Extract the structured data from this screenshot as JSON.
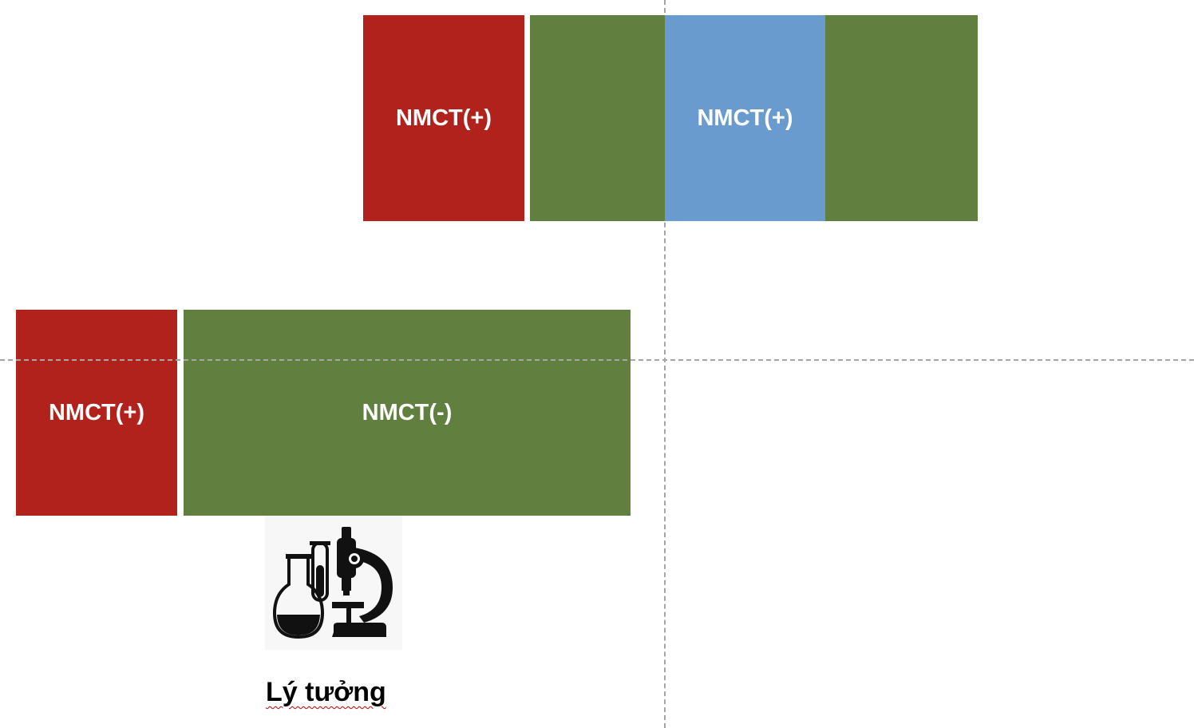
{
  "colors": {
    "red": "#b0221b",
    "green": "#617f3e",
    "blue": "#6a9bcf",
    "guide": "#a6a6a6",
    "caption_underline": "#c00000"
  },
  "top_row": {
    "red_label": "NMCT(+)",
    "green_left_label": "",
    "blue_label": "NMCT(+)",
    "green_right_label": ""
  },
  "bottom_row": {
    "red_label": "NMCT(+)",
    "green_label": "NMCT(-)"
  },
  "icon": {
    "name": "laboratory-microscope-flask-icon"
  },
  "caption": "Lý tưởng"
}
